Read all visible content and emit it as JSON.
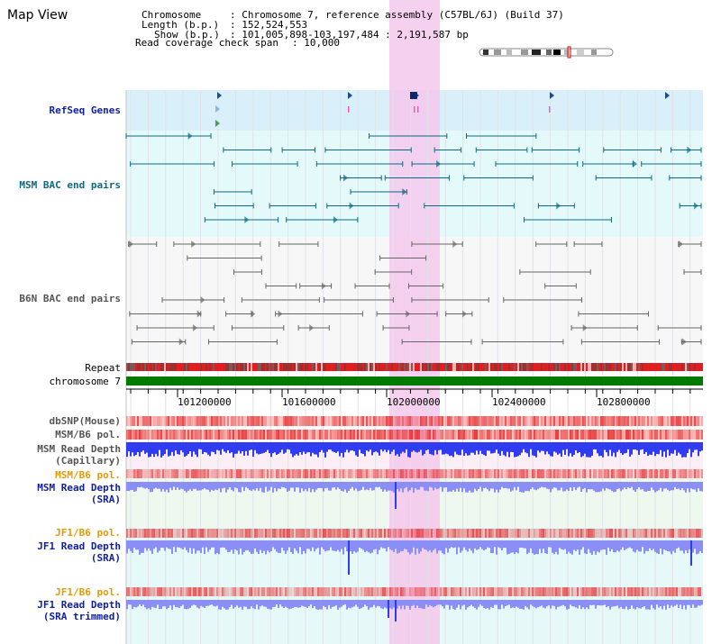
{
  "app": {
    "title": "Map View"
  },
  "info": {
    "chromosome_key": "Chromosome",
    "chromosome_val": ": Chromosome 7, reference assembly (C57BL/6J) (Build 37)",
    "length_key": "Length (b.p.)",
    "length_val": ": 152,524,553",
    "show_key": "Show (b.p.)",
    "show_val": ": 101,005,898-103,197,484 : 2,191,587 bp",
    "span_key": "Read coverage check span",
    "span_val": ": 10,000"
  },
  "tracks": {
    "refseq": "RefSeq Genes",
    "msm_bac": "MSM BAC end pairs",
    "b6n_bac": "B6N BAC end pairs",
    "repeat": "Repeat",
    "chromosome": "chromosome 7",
    "dbsnp": "dbSNP(Mouse)",
    "msm_b6_pol_1": "MSM/B6 pol.",
    "msm_depth_cap_1": "MSM Read Depth",
    "msm_depth_cap_2": "(Capillary)",
    "msm_b6_pol_2": "MSM/B6 pol.",
    "msm_depth_sra_1": "MSM Read Depth",
    "msm_depth_sra_2": "(SRA)",
    "jf1_b6_pol_1": "JF1/B6 pol.",
    "jf1_depth_sra_1": "JF1 Read Depth",
    "jf1_depth_sra_2": "(SRA)",
    "jf1_b6_pol_2": "JF1/B6 pol.",
    "jf1_depth_trim_1": "JF1 Read Depth",
    "jf1_depth_trim_2": "(SRA trimmed)"
  },
  "axis": {
    "ticks": [
      "101200000",
      "101600000",
      "102000000",
      "102400000",
      "102800000"
    ]
  },
  "colors": {
    "highlight": "#f5c8ec",
    "refseq_bg": "#d9f0fa",
    "bac_bg": "#e4fafa",
    "chromosome": "#007a00",
    "msm_pair": "#0c6a80",
    "b6n_pair": "#666666",
    "depth_blue": "#2f3cf0",
    "depth_light": "#8a8ef5",
    "pol_red": "#f06060"
  },
  "icons": {
    "ideogram": "chromosome-ideogram"
  }
}
